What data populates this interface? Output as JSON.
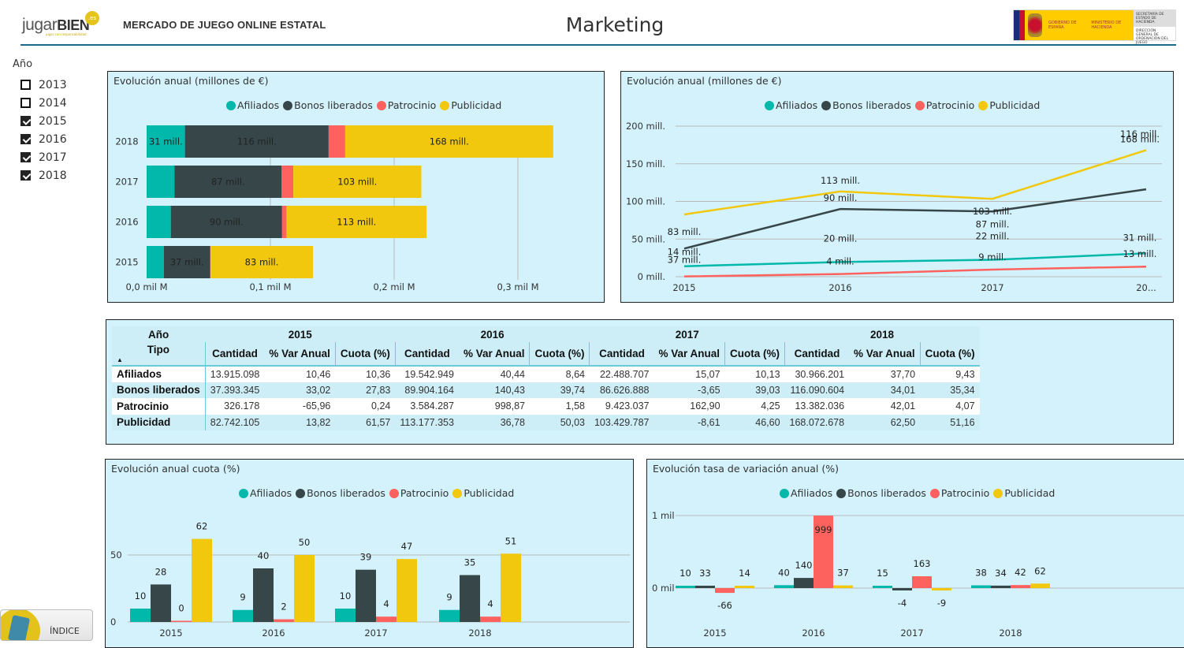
{
  "header": {
    "logo_text": "jugar",
    "logo_bold": "BIEN",
    "logo_badge": ".es",
    "logo_tagline": "jugar con responsabilidad",
    "app_title": "MERCADO DE JUEGO ONLINE ESTATAL",
    "page_title": "Marketing",
    "gov_logo": {
      "gobierno": "GOBIERNO DE ESPAÑA",
      "ministerio": "MINISTERIO DE HACIENDA",
      "secretaria": "SECRETARÍA DE ESTADO DE HACIENDA",
      "direccion": "DIRECCIÓN GENERAL DE ORDENACIÓN DEL JUEGO"
    }
  },
  "slicer": {
    "label": "Año",
    "items": [
      {
        "label": "2013",
        "checked": false
      },
      {
        "label": "2014",
        "checked": false
      },
      {
        "label": "2015",
        "checked": true
      },
      {
        "label": "2016",
        "checked": true
      },
      {
        "label": "2017",
        "checked": true
      },
      {
        "label": "2018",
        "checked": true
      }
    ]
  },
  "legend": {
    "items": [
      {
        "label": "Afiliados",
        "color": "#01b8aa"
      },
      {
        "label": "Bonos liberados",
        "color": "#374649"
      },
      {
        "label": "Patrocinio",
        "color": "#fd625e"
      },
      {
        "label": "Publicidad",
        "color": "#f2c80f"
      }
    ]
  },
  "table": {
    "corner_col_label": "Año",
    "corner_row_label": "Tipo",
    "sort_indicator": "▲",
    "years": [
      "2015",
      "2016",
      "2017",
      "2018"
    ],
    "measures": [
      "Cantidad",
      "% Var Anual",
      "Cuota (%)"
    ],
    "rows": [
      {
        "tipo": "Afiliados",
        "values": [
          "13.915.098",
          "10,46",
          "10,36",
          "19.542.949",
          "40,44",
          "8,64",
          "22.488.707",
          "15,07",
          "10,13",
          "30.966.201",
          "37,70",
          "9,43"
        ]
      },
      {
        "tipo": "Bonos liberados",
        "values": [
          "37.393.345",
          "33,02",
          "27,83",
          "89.904.164",
          "140,43",
          "39,74",
          "86.626.888",
          "-3,65",
          "39,03",
          "116.090.604",
          "34,01",
          "35,34"
        ]
      },
      {
        "tipo": "Patrocinio",
        "values": [
          "326.178",
          "-65,96",
          "0,24",
          "3.584.287",
          "998,87",
          "1,58",
          "9.423.037",
          "162,90",
          "4,25",
          "13.382.036",
          "42,01",
          "4,07"
        ]
      },
      {
        "tipo": "Publicidad",
        "values": [
          "82.742.105",
          "13,82",
          "61,57",
          "113.177.353",
          "36,78",
          "50,03",
          "103.429.787",
          "-8,61",
          "46,60",
          "168.072.678",
          "62,50",
          "51,16"
        ]
      }
    ]
  },
  "index_button": {
    "label": "ÍNDICE"
  },
  "chart_data": [
    {
      "id": "stacked-bar",
      "type": "bar",
      "orientation": "horizontal",
      "stacked": true,
      "title": "Evolución anual (millones de €)",
      "categories": [
        "2018",
        "2017",
        "2016",
        "2015"
      ],
      "series": [
        {
          "name": "Afiliados",
          "values": [
            30.97,
            22.49,
            19.54,
            13.92
          ],
          "labels": [
            "31 mill.",
            "",
            "",
            ""
          ]
        },
        {
          "name": "Bonos liberados",
          "values": [
            116.09,
            86.63,
            89.9,
            37.39
          ],
          "labels": [
            "116 mill.",
            "87 mill.",
            "90 mill.",
            "37 mill."
          ]
        },
        {
          "name": "Patrocinio",
          "values": [
            13.38,
            9.42,
            3.58,
            0.33
          ],
          "labels": [
            "",
            "",
            "",
            ""
          ]
        },
        {
          "name": "Publicidad",
          "values": [
            168.07,
            103.43,
            113.18,
            82.74
          ],
          "labels": [
            "168 mill.",
            "103 mill.",
            "113 mill.",
            "83 mill."
          ]
        }
      ],
      "x_ticks": [
        "0,0 mil M",
        "0,1 mil M",
        "0,2 mil M",
        "0,3 mil M"
      ],
      "x_tick_values": [
        0,
        100,
        200,
        300
      ],
      "xlim": [
        0,
        340
      ],
      "legend_position": "top-center",
      "grid": true
    },
    {
      "id": "line",
      "type": "line",
      "title": "Evolución anual (millones de €)",
      "x": [
        "2015",
        "2016",
        "2017",
        "20..."
      ],
      "series": [
        {
          "name": "Afiliados",
          "values": [
            13.92,
            19.54,
            22.49,
            30.97
          ],
          "labels": [
            "14 mill.",
            "20 mill.",
            "22 mill.",
            "31 mill."
          ]
        },
        {
          "name": "Bonos liberados",
          "values": [
            37.39,
            89.9,
            86.63,
            116.09
          ],
          "labels": [
            "37 mill.",
            "90 mill.",
            "87 mill.",
            "116 mill."
          ]
        },
        {
          "name": "Patrocinio",
          "values": [
            0.33,
            3.58,
            9.42,
            13.38
          ],
          "labels": [
            "",
            "4 mill.",
            "9 mill.",
            "13 mill."
          ]
        },
        {
          "name": "Publicidad",
          "values": [
            82.74,
            113.18,
            103.43,
            168.07
          ],
          "labels": [
            "83 mill.",
            "113 mill.",
            "103 mill.",
            "168 mill."
          ]
        }
      ],
      "y_ticks": [
        "0 mill.",
        "50 mill.",
        "100 mill.",
        "150 mill.",
        "200 mill."
      ],
      "y_tick_values": [
        0,
        50,
        100,
        150,
        200
      ],
      "ylim": [
        0,
        200
      ],
      "legend_position": "top-center",
      "grid": true
    },
    {
      "id": "cuota-bars",
      "type": "bar",
      "title": "Evolución anual cuota (%)",
      "categories": [
        "2015",
        "2016",
        "2017",
        "2018"
      ],
      "series": [
        {
          "name": "Afiliados",
          "values": [
            10,
            9,
            10,
            9
          ]
        },
        {
          "name": "Bonos liberados",
          "values": [
            28,
            40,
            39,
            35
          ]
        },
        {
          "name": "Patrocinio",
          "values": [
            0,
            2,
            4,
            4
          ]
        },
        {
          "name": "Publicidad",
          "values": [
            62,
            50,
            47,
            51
          ]
        }
      ],
      "y_ticks": [
        "0",
        "50"
      ],
      "y_tick_values": [
        0,
        50
      ],
      "ylim": [
        0,
        67
      ],
      "legend_position": "top-center",
      "grid": true
    },
    {
      "id": "var-bars",
      "type": "bar",
      "title": "Evolución tasa de variación anual (%)",
      "categories": [
        "2015",
        "2016",
        "2017",
        "2018"
      ],
      "series": [
        {
          "name": "Afiliados",
          "values": [
            10,
            40,
            15,
            38
          ]
        },
        {
          "name": "Bonos liberados",
          "values": [
            33,
            140,
            -4,
            34
          ]
        },
        {
          "name": "Patrocinio",
          "values": [
            -66,
            999,
            163,
            42
          ]
        },
        {
          "name": "Publicidad",
          "values": [
            14,
            37,
            -9,
            62
          ]
        }
      ],
      "y_ticks": [
        "0 mil",
        "1 mil"
      ],
      "y_tick_values": [
        0,
        1000
      ],
      "ylim": [
        -330,
        1000
      ],
      "legend_position": "top-center",
      "grid": true
    }
  ]
}
